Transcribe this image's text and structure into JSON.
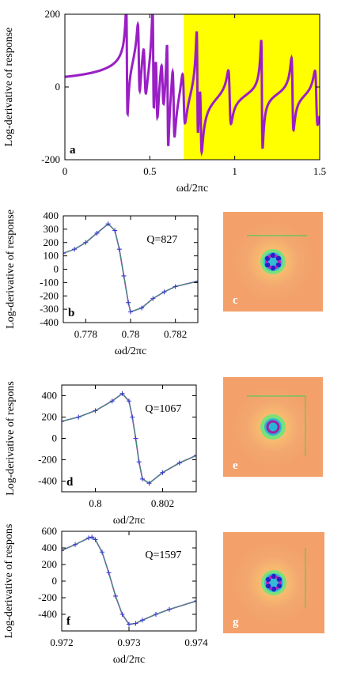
{
  "chart_data": [
    {
      "id": "a",
      "type": "line",
      "panel_label": "a",
      "xlabel": "ωd/2πc",
      "ylabel": "Log-derivative of response",
      "xlim": [
        0,
        1.5
      ],
      "ylim": [
        -200,
        200
      ],
      "x_ticks": [
        "0",
        "0.5",
        "1",
        "1.5"
      ],
      "y_ticks": [
        "-200",
        "0",
        "200"
      ],
      "highlight_region": {
        "x_from": 0.7,
        "x_to": 1.5,
        "color": "#ffff00"
      },
      "line_color": "#9a1fc4",
      "resonances_x": [
        0.365,
        0.435,
        0.47,
        0.52,
        0.54,
        0.575,
        0.605,
        0.64,
        0.7,
        0.78,
        0.8,
        0.97,
        1.16,
        1.34,
        1.48
      ]
    },
    {
      "id": "b",
      "type": "line",
      "panel_label": "b",
      "xlabel": "ωd/2πc",
      "ylabel": "Log-derivative of response",
      "xlim": [
        0.777,
        0.783
      ],
      "ylim": [
        -400,
        400
      ],
      "x_ticks": [
        "0.778",
        "0.78",
        "0.782"
      ],
      "y_ticks": [
        "-400",
        "-300",
        "-200",
        "-100",
        "0",
        "100",
        "200",
        "300",
        "400"
      ],
      "annotation": "Q=827",
      "series": [
        {
          "values": [
            [
              0.777,
              120
            ],
            [
              0.7775,
              150
            ],
            [
              0.778,
              200
            ],
            [
              0.7785,
              270
            ],
            [
              0.779,
              340
            ],
            [
              0.7793,
              290
            ],
            [
              0.7795,
              150
            ],
            [
              0.7797,
              -50
            ],
            [
              0.7799,
              -250
            ],
            [
              0.78,
              -320
            ],
            [
              0.7805,
              -290
            ],
            [
              0.781,
              -220
            ],
            [
              0.7815,
              -170
            ],
            [
              0.782,
              -130
            ],
            [
              0.783,
              -90
            ]
          ]
        }
      ]
    },
    {
      "id": "d",
      "type": "line",
      "panel_label": "d",
      "xlabel": "ωd/2πc",
      "ylabel": "Log-derivative of respons",
      "xlim": [
        0.799,
        0.803
      ],
      "ylim": [
        -500,
        500
      ],
      "x_ticks": [
        "0.8",
        "0.802"
      ],
      "y_ticks": [
        "-400",
        "-200",
        "0",
        "200",
        "400"
      ],
      "annotation": "Q=1067",
      "series": [
        {
          "values": [
            [
              0.799,
              160
            ],
            [
              0.7995,
              200
            ],
            [
              0.8,
              260
            ],
            [
              0.8005,
              350
            ],
            [
              0.8008,
              420
            ],
            [
              0.801,
              350
            ],
            [
              0.8011,
              200
            ],
            [
              0.8012,
              0
            ],
            [
              0.8013,
              -220
            ],
            [
              0.8014,
              -380
            ],
            [
              0.8016,
              -420
            ],
            [
              0.802,
              -320
            ],
            [
              0.8025,
              -230
            ],
            [
              0.803,
              -160
            ]
          ]
        }
      ]
    },
    {
      "id": "f",
      "type": "line",
      "panel_label": "f",
      "xlabel": "ωd/2πc",
      "ylabel": "Log-derivative of respons",
      "xlim": [
        0.972,
        0.974
      ],
      "ylim": [
        -600,
        600
      ],
      "x_ticks": [
        "0.972",
        "0.973",
        "0.974"
      ],
      "y_ticks": [
        "-400",
        "-200",
        "0",
        "200",
        "400",
        "600"
      ],
      "annotation": "Q=1597",
      "series": [
        {
          "values": [
            [
              0.972,
              370
            ],
            [
              0.9722,
              440
            ],
            [
              0.9724,
              520
            ],
            [
              0.97245,
              530
            ],
            [
              0.9725,
              500
            ],
            [
              0.9726,
              350
            ],
            [
              0.9727,
              100
            ],
            [
              0.9728,
              -180
            ],
            [
              0.9729,
              -400
            ],
            [
              0.973,
              -520
            ],
            [
              0.9731,
              -510
            ],
            [
              0.9732,
              -470
            ],
            [
              0.9734,
              -400
            ],
            [
              0.9736,
              -340
            ],
            [
              0.974,
              -240
            ]
          ]
        }
      ]
    }
  ],
  "field_maps": [
    {
      "label": "c",
      "pattern": "hexagon-dots",
      "background": "#f3a06a"
    },
    {
      "label": "e",
      "pattern": "ring",
      "background": "#f3a06a"
    },
    {
      "label": "g",
      "pattern": "hexagon-dots",
      "background": "#f3a06a"
    }
  ],
  "colors": {
    "curve": "#9a1fc4",
    "fit": "#2aa36b",
    "markers": "#3b3bd0",
    "highlight": "#ffff00"
  }
}
